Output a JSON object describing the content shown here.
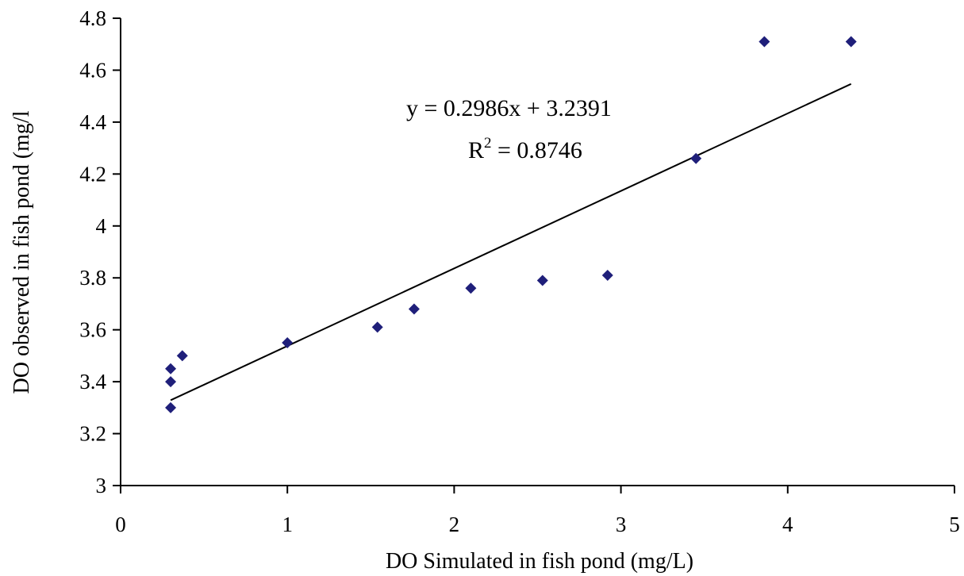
{
  "chart_data": {
    "type": "scatter",
    "title": "",
    "xlabel": "DO Simulated in fish pond (mg/L)",
    "ylabel": "DO observed in fish pond (mg/l",
    "xlim": [
      0,
      5
    ],
    "ylim": [
      3,
      4.8
    ],
    "x_ticks": [
      0,
      1,
      2,
      3,
      4,
      5
    ],
    "y_ticks": [
      3,
      3.2,
      3.4,
      3.6,
      3.8,
      4,
      4.2,
      4.4,
      4.6,
      4.8
    ],
    "x_tick_labels": [
      "0",
      "1",
      "2",
      "3",
      "4",
      "5"
    ],
    "y_tick_labels": [
      "3",
      "3.2",
      "3.4",
      "3.6",
      "3.8",
      "4",
      "4.2",
      "4.4",
      "4.6",
      "4.8"
    ],
    "grid": false,
    "legend": "none",
    "marker": "diamond",
    "marker_color": "#1f1f7a",
    "line_color": "#000000",
    "points": [
      {
        "x": 0.3,
        "y": 3.3
      },
      {
        "x": 0.3,
        "y": 3.4
      },
      {
        "x": 0.3,
        "y": 3.45
      },
      {
        "x": 0.37,
        "y": 3.5
      },
      {
        "x": 1.0,
        "y": 3.55
      },
      {
        "x": 1.54,
        "y": 3.61
      },
      {
        "x": 1.76,
        "y": 3.68
      },
      {
        "x": 2.1,
        "y": 3.76
      },
      {
        "x": 2.53,
        "y": 3.79
      },
      {
        "x": 2.92,
        "y": 3.81
      },
      {
        "x": 3.45,
        "y": 4.26
      },
      {
        "x": 3.86,
        "y": 4.71
      },
      {
        "x": 4.38,
        "y": 4.71
      }
    ],
    "trendline": {
      "slope": 0.2986,
      "intercept": 3.2391,
      "x_range": [
        0.3,
        4.38
      ]
    },
    "annotations": {
      "equation": "y = 0.2986x + 3.2391",
      "r2_prefix": "R",
      "r2_superscript": "2",
      "r2_value": " = 0.8746"
    }
  }
}
